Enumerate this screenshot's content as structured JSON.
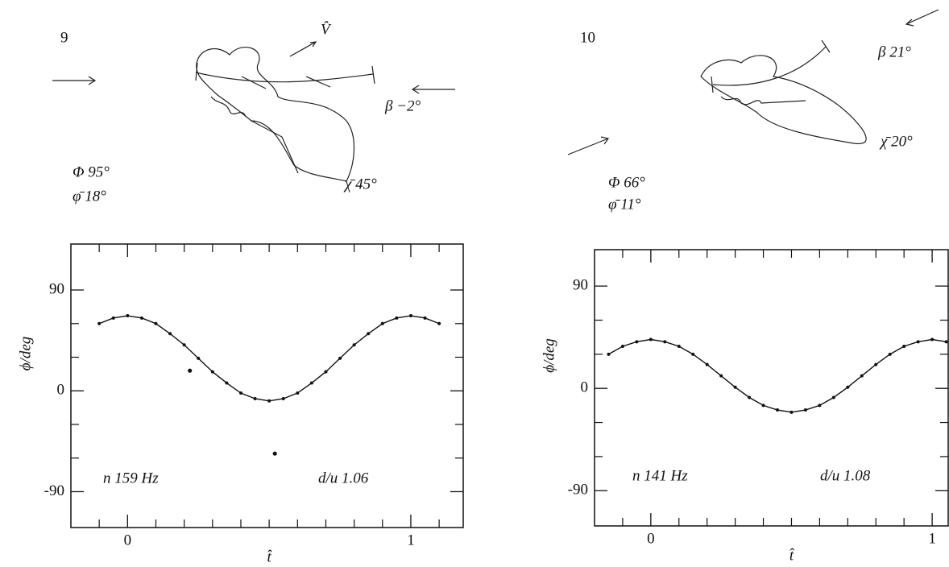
{
  "chart_data": [
    {
      "type": "line",
      "panel": "9",
      "annotations": {
        "vector": "V̂",
        "beta": "β −2°",
        "Phi": "Φ 95°",
        "phibar": "φ̄ 18°",
        "chibar": "χ̄ 45°",
        "frequency": "n 159 Hz",
        "ratio": "d/u 1.06"
      },
      "x_label": "t̂",
      "y_label": "ϕ/deg",
      "x": [
        -0.1,
        -0.05,
        0,
        0.05,
        0.1,
        0.15,
        0.2,
        0.25,
        0.3,
        0.35,
        0.4,
        0.45,
        0.5,
        0.55,
        0.6,
        0.65,
        0.7,
        0.75,
        0.8,
        0.85,
        0.9,
        0.95,
        1.0,
        1.05,
        1.1
      ],
      "series": [
        {
          "color": "#111111",
          "values": [
            60,
            65,
            67,
            65,
            60,
            51,
            41,
            29,
            17,
            7,
            -2,
            -7,
            -9,
            -7,
            -2,
            7,
            17,
            29,
            41,
            51,
            60,
            65,
            67,
            65,
            60
          ]
        },
        {
          "color": "#111111",
          "x": [
            0.22,
            0.52
          ],
          "values": [
            18,
            -56
          ],
          "line": false
        }
      ],
      "xlim": [
        -0.2,
        1.185
      ],
      "ylim": [
        -122,
        131
      ],
      "xticks": [
        0,
        1
      ],
      "yticks": [
        -90,
        0,
        90
      ],
      "xticks_minor": [
        -0.1,
        0.1,
        0.2,
        0.3,
        0.4,
        0.5,
        0.6,
        0.7,
        0.8,
        0.9,
        1.1
      ],
      "yticks_minor": [
        -60,
        -30,
        30,
        60
      ]
    },
    {
      "type": "line",
      "panel": "10",
      "annotations": {
        "beta": "β 21°",
        "Phi": "Φ 66°",
        "phibar": "φ̄ 11°",
        "chibar": "χ̄ 20°",
        "frequency": "n 141 Hz",
        "ratio": "d/u 1.08"
      },
      "x_label": "t̂",
      "y_label": "ϕ/deg",
      "x": [
        -0.15,
        -0.1,
        -0.05,
        0,
        0.05,
        0.1,
        0.15,
        0.2,
        0.25,
        0.3,
        0.35,
        0.4,
        0.45,
        0.5,
        0.55,
        0.6,
        0.65,
        0.7,
        0.75,
        0.8,
        0.85,
        0.9,
        0.95,
        1.0,
        1.05
      ],
      "series": [
        {
          "color": "#111111",
          "values": [
            30,
            37,
            41,
            43,
            41,
            37,
            30,
            21,
            11,
            1,
            -8,
            -15,
            -19,
            -21,
            -19,
            -15,
            -8,
            1,
            11,
            21,
            30,
            37,
            41,
            43,
            41
          ]
        }
      ],
      "xlim": [
        -0.2,
        1.057
      ],
      "ylim": [
        -121,
        122
      ],
      "xticks": [
        0,
        1
      ],
      "yticks": [
        -90,
        0,
        90
      ],
      "xticks_minor": [
        -0.1,
        0.1,
        0.2,
        0.3,
        0.4,
        0.5,
        0.6,
        0.7,
        0.8,
        0.9
      ],
      "yticks_minor": [
        -60,
        -30,
        30,
        60
      ]
    }
  ]
}
